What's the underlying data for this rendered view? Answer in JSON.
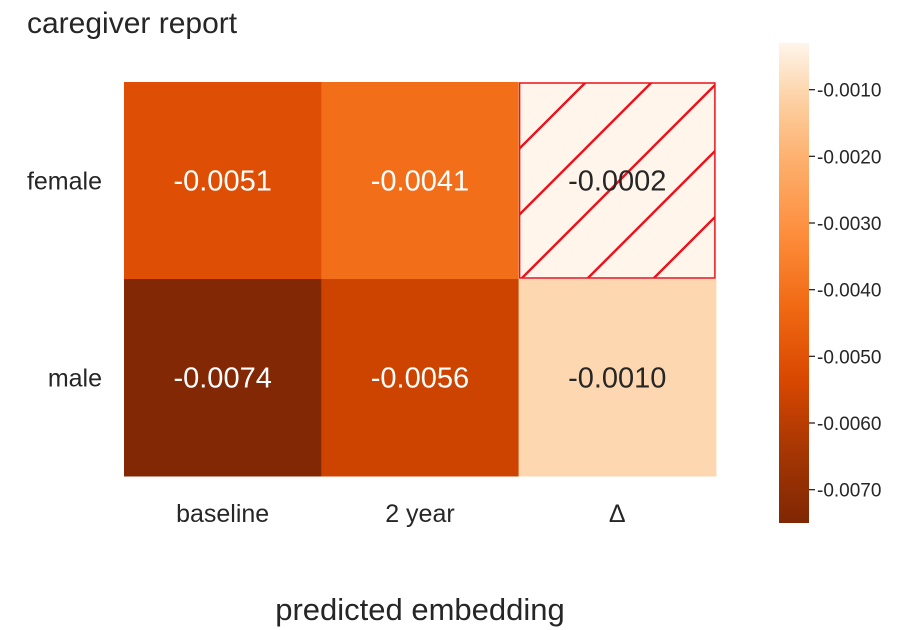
{
  "chart_data": {
    "type": "heatmap",
    "title": "caregiver report",
    "xlabel": "predicted embedding",
    "ylabel": "",
    "columns": [
      "baseline",
      "2 year",
      "Δ"
    ],
    "rows": [
      "female",
      "male"
    ],
    "values": [
      [
        -0.0051,
        -0.0041,
        -0.0002
      ],
      [
        -0.0074,
        -0.0056,
        -0.001
      ]
    ],
    "cell_labels": [
      [
        "-0.0051",
        "-0.0041",
        "-0.0002"
      ],
      [
        "-0.0074",
        "-0.0056",
        "-0.0010"
      ]
    ],
    "hatched_cells": [
      [
        0,
        2
      ]
    ],
    "hatch_color": "#e8141e",
    "colormap": "Oranges_r",
    "colorbar": {
      "range": [
        -0.0075,
        -0.0003
      ],
      "ticks": [
        -0.001,
        -0.002,
        -0.003,
        -0.004,
        -0.005,
        -0.006,
        -0.007
      ],
      "tick_labels": [
        "-0.0010",
        "-0.0020",
        "-0.0030",
        "-0.0040",
        "-0.0050",
        "-0.0060",
        "-0.0070"
      ]
    },
    "grid": false
  }
}
